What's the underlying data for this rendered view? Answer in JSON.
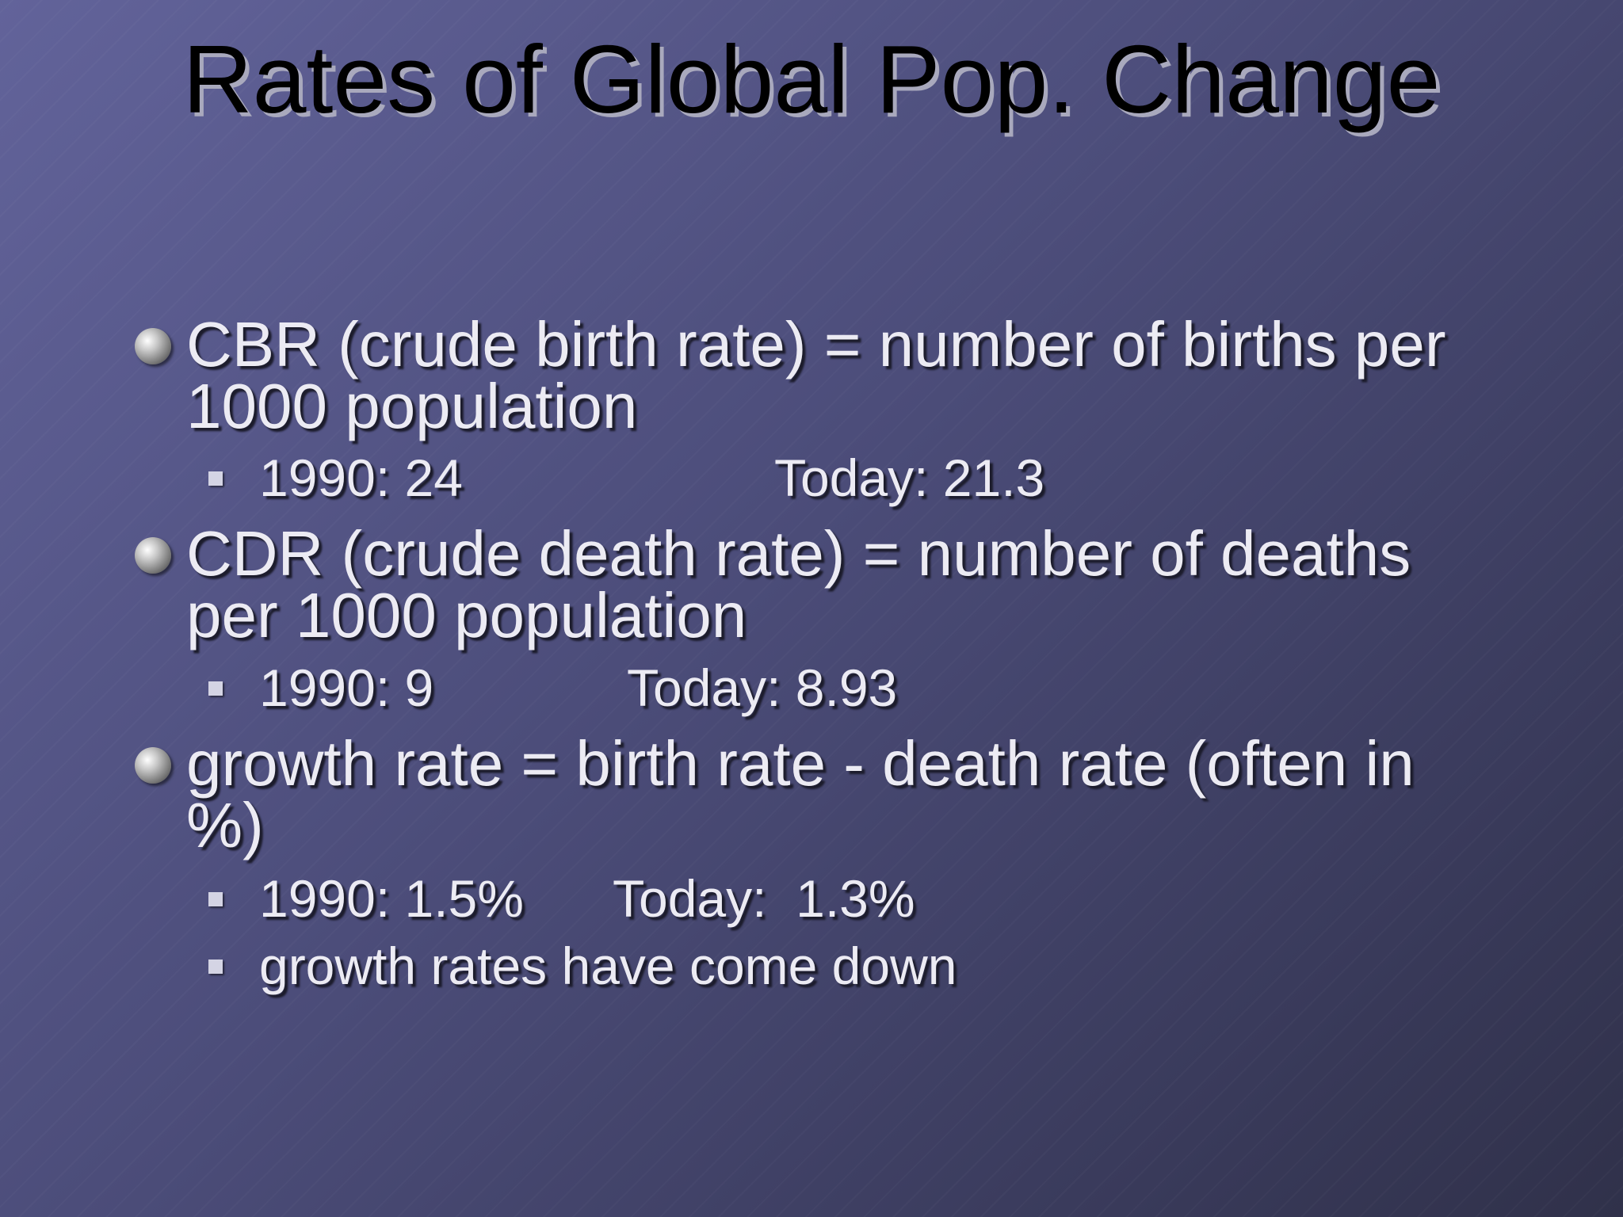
{
  "slide": {
    "title": "Rates of Global Pop. Change",
    "bullets": [
      {
        "text": "CBR (crude birth rate) = number of births per 1000 population",
        "subitems": [
          {
            "parts": [
              "1990: 24",
              "Today: 21.3"
            ]
          }
        ]
      },
      {
        "text": "CDR (crude death rate) = number of deaths per 1000 population",
        "subitems": [
          {
            "parts": [
              "1990: 9",
              "Today: 8.93"
            ]
          }
        ]
      },
      {
        "text": "growth rate = birth rate - death rate (often in %)",
        "subitems": [
          {
            "parts": [
              "1990: 1.5%",
              "Today:  1.3%"
            ]
          },
          {
            "parts": [
              "growth rates have come down"
            ]
          }
        ]
      }
    ]
  }
}
